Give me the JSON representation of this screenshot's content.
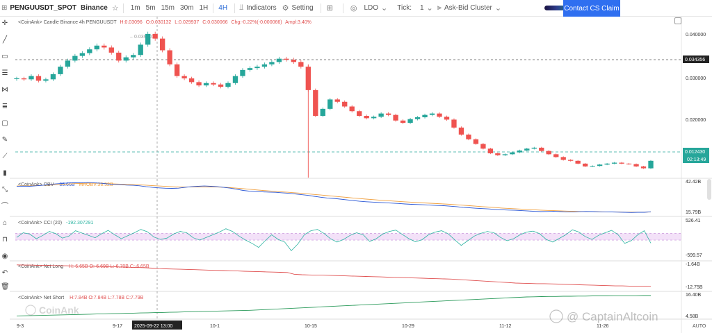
{
  "toolbar": {
    "symbol": "PENGUUSDT_SPOT",
    "exchange": "Binance",
    "timeframes": [
      "1m",
      "5m",
      "15m",
      "30m",
      "1H",
      "4H"
    ],
    "active_timeframe": "4H",
    "indicators_label": "Indicators",
    "setting_label": "Setting",
    "ldo_label": "LDO",
    "tick_label": "Tick:",
    "tick_value": "1",
    "ask_bid_label": "Ask-Bid Cluster",
    "contact_label": "Contact CS Claim"
  },
  "legend": {
    "candle": "<CoinAnk> Candle  Binance 4h PENGUUSDT",
    "candle_h": "H:0.03096",
    "candle_o": "O:0.030132",
    "candle_l": "L:0.029937",
    "candle_c": "C:0.030066",
    "candle_chg": "Chg:-0.22%(-0.000066)",
    "candle_ampl": "Ampl:3.40%",
    "high_marker": "0.039701",
    "obv_title": "<CoinAnk> OBV",
    "obv_value": "35.66B",
    "maobv_label": "MAOBV:38.52B",
    "cci_title": "<CoinAnk> CCI (20)",
    "cci_value": "-192.307291",
    "netlong_title": "<CoinAnk> Net Long",
    "netlong_values": "H:-6.65B  O:-6.69B  L:-6.70B  C:-6.65B",
    "netshort_title": "<CoinAnk> Net Short",
    "netshort_values": "H:7.84B  O:7.84B  L:7.78B  C:7.79B"
  },
  "price_axis": {
    "ticks": [
      "0.040000",
      "0.030000",
      "0.020000"
    ],
    "crosshair_tag": "0.034356",
    "current_price": "0.012430",
    "countdown": "02:13:49"
  },
  "obv_axis": {
    "top": "42.42B",
    "bottom": "15.79B"
  },
  "cci_axis": {
    "top": "526.41",
    "bottom": "-599.57"
  },
  "netlong_axis": {
    "top": "-1.64B",
    "bottom": "-12.75B"
  },
  "netshort_axis": {
    "top": "16.40B",
    "bottom": "4.58B"
  },
  "time_axis": {
    "labels": [
      "9-3",
      "9-17",
      "10-1",
      "10-15",
      "10-29",
      "11-12",
      "11-26"
    ],
    "crosshair_label": "2025-09-22 13:00",
    "auto_label": "AUTO"
  },
  "watermarks": {
    "coinank": "CoinAnk",
    "captain": "@ CaptainAltcoin"
  },
  "colors": {
    "up": "#26a69a",
    "down": "#ef5350",
    "obv": "#2a57d6",
    "maobv": "#f0a040",
    "cci": "#2ab3a0",
    "accent": "#2f6ff0"
  },
  "chart_data": {
    "type": "candlestick",
    "x_labels": [
      "9-3",
      "9-17",
      "10-1",
      "10-15",
      "10-29",
      "11-12",
      "11-26"
    ],
    "price_ylim": [
      0.01,
      0.042
    ],
    "price_key_levels": [
      0.0397,
      0.0344,
      0.0124
    ],
    "price_closes": [
      0.03,
      0.0298,
      0.0305,
      0.0295,
      0.0298,
      0.0309,
      0.0325,
      0.0338,
      0.0348,
      0.0354,
      0.0362,
      0.037,
      0.0366,
      0.0355,
      0.0338,
      0.0345,
      0.035,
      0.0372,
      0.0395,
      0.0385,
      0.036,
      0.033,
      0.0305,
      0.03,
      0.0292,
      0.0285,
      0.029,
      0.0287,
      0.0282,
      0.029,
      0.0305,
      0.0318,
      0.0322,
      0.0325,
      0.033,
      0.0335,
      0.0342,
      0.034,
      0.0335,
      0.0325,
      0.0275,
      0.022,
      0.0235,
      0.0255,
      0.025,
      0.024,
      0.023,
      0.022,
      0.0215,
      0.0218,
      0.0225,
      0.0222,
      0.021,
      0.0205,
      0.0213,
      0.0217,
      0.0222,
      0.0225,
      0.0218,
      0.0212,
      0.0195,
      0.018,
      0.017,
      0.016,
      0.015,
      0.014,
      0.0136,
      0.0138,
      0.0142,
      0.0146,
      0.015,
      0.0152,
      0.0145,
      0.0138,
      0.0132,
      0.0126,
      0.0124,
      0.0118,
      0.0112,
      0.0113,
      0.0116,
      0.0118,
      0.012,
      0.0118,
      0.0117,
      0.0112,
      0.0108,
      0.0124
    ],
    "obv_ylim": [
      15.79,
      42.42
    ],
    "obv": [
      38.5,
      38.7,
      38.6,
      39.0,
      39.4,
      40.0,
      40.6,
      41.0,
      41.4,
      41.6,
      41.5,
      41.7,
      41.5,
      41.2,
      40.6,
      40.2,
      40.0,
      39.6,
      39.4,
      39.0,
      38.2,
      37.6,
      37.2,
      36.9,
      36.8,
      37.0,
      37.6,
      38.2,
      38.6,
      38.8,
      38.6,
      38.2,
      37.6,
      37.0,
      36.0,
      35.0,
      34.4,
      34.0,
      33.8,
      33.6,
      33.4,
      33.0,
      32.6,
      32.0,
      31.4,
      30.8,
      30.0,
      29.2,
      28.6,
      28.2,
      27.6,
      27.0,
      26.4,
      25.8,
      25.4,
      25.1,
      24.8,
      24.5,
      24.2,
      23.9,
      23.5,
      23.2,
      23.0,
      22.8,
      22.5,
      22.2,
      22.0,
      21.6,
      21.2,
      20.6,
      20.2,
      19.8,
      19.5,
      19.2,
      18.8,
      18.5,
      18.3,
      18.1,
      17.8,
      17.5,
      17.2,
      17.0,
      17.1,
      17.3,
      17.0,
      16.6,
      16.6,
      16.9,
      17.1,
      17.0,
      16.8,
      16.6,
      16.7,
      16.5,
      16.4,
      16.2,
      16.4,
      16.4,
      16.8
    ],
    "maobv": [
      38.8,
      38.9,
      39.0,
      39.2,
      39.4,
      39.6,
      39.9,
      40.2,
      40.5,
      40.8,
      41.0,
      41.2,
      41.2,
      41.1,
      40.9,
      40.6,
      40.4,
      40.2,
      40.0,
      39.8,
      39.5,
      39.1,
      38.8,
      38.5,
      38.2,
      38.0,
      37.9,
      37.9,
      37.9,
      38.0,
      38.0,
      37.9,
      37.7,
      37.4,
      37.0,
      36.5,
      36.0,
      35.5,
      35.0,
      34.6,
      34.2,
      33.8,
      33.4,
      33.0,
      32.6,
      32.1,
      31.6,
      31.1,
      30.6,
      30.1,
      29.6,
      29.1,
      28.6,
      28.1,
      27.6,
      27.2,
      26.8,
      26.4,
      26.0,
      25.7,
      25.3,
      25.0,
      24.7,
      24.4,
      24.1,
      23.8,
      23.5,
      23.2,
      22.8,
      22.4,
      22.0,
      21.6,
      21.2,
      20.8,
      20.4,
      20.0,
      19.7,
      19.4,
      19.1,
      18.8,
      18.5,
      18.2,
      18.0,
      17.8,
      17.6,
      17.4,
      17.2,
      17.1,
      17.0,
      16.9,
      16.8,
      16.7,
      16.6,
      16.6,
      16.5,
      16.5,
      16.5,
      16.5,
      16.6
    ],
    "cci_ylim": [
      -599.57,
      526.41
    ],
    "cci": [
      -20,
      120,
      80,
      -60,
      40,
      160,
      90,
      -40,
      20,
      180,
      110,
      40,
      -30,
      90,
      190,
      60,
      -60,
      30,
      120,
      220,
      150,
      -10,
      -80,
      -40,
      80,
      160,
      120,
      -30,
      -100,
      -20,
      60,
      140,
      240,
      160,
      20,
      -100,
      -200,
      -320,
      -120,
      60,
      -80,
      -160,
      -420,
      -220,
      60,
      180,
      220,
      100,
      -60,
      -160,
      -80,
      40,
      120,
      60,
      -140,
      -60,
      80,
      160,
      200,
      70,
      -60,
      -150,
      -90,
      60,
      140,
      180,
      90,
      -90,
      -260,
      -120,
      20,
      100,
      160,
      120,
      -20,
      -120,
      -60,
      60,
      140,
      170,
      90,
      -80,
      -160,
      -50,
      60,
      210,
      140,
      0,
      -80,
      40,
      120,
      190,
      60,
      -200,
      -120,
      60,
      180,
      -192
    ],
    "cci_band": [
      -100,
      100
    ],
    "netlong_ylim": [
      -12.75,
      -1.64
    ],
    "netlong": [
      -1.9,
      -2.0,
      -2.0,
      -2.1,
      -2.1,
      -2.2,
      -2.3,
      -2.3,
      -2.4,
      -2.5,
      -2.5,
      -2.6,
      -2.6,
      -2.7,
      -2.8,
      -2.9,
      -3.0,
      -3.1,
      -3.2,
      -3.4,
      -3.6,
      -3.7,
      -3.8,
      -3.9,
      -4.0,
      -4.1,
      -4.2,
      -4.3,
      -4.4,
      -4.5,
      -4.6,
      -4.7,
      -4.8,
      -4.9,
      -5.0,
      -5.1,
      -5.2,
      -5.3,
      -5.4,
      -6.2,
      -6.4,
      -6.5,
      -6.6,
      -6.6,
      -6.7,
      -6.8,
      -6.9,
      -7.0,
      -7.1,
      -7.2,
      -7.3,
      -7.4,
      -7.5,
      -7.6,
      -7.7,
      -7.8,
      -7.9,
      -8.0,
      -8.1,
      -8.2,
      -8.3,
      -8.4,
      -8.6,
      -8.8,
      -9.0,
      -9.2,
      -9.4,
      -9.6,
      -9.8,
      -10.0,
      -10.2,
      -10.3,
      -10.4,
      -10.5,
      -10.5,
      -10.6,
      -10.7,
      -10.8,
      -10.9,
      -11.0,
      -11.1,
      -11.2,
      -11.3,
      -11.4,
      -11.5,
      -11.5,
      -11.6,
      -11.6,
      -11.6,
      -11.7
    ],
    "netshort_ylim": [
      4.58,
      16.4
    ],
    "netshort": [
      4.8,
      4.9,
      5.0,
      5.1,
      5.2,
      5.3,
      5.4,
      5.5,
      5.6,
      5.7,
      5.8,
      5.9,
      6.0,
      6.1,
      6.2,
      6.3,
      6.4,
      6.5,
      6.6,
      6.7,
      6.8,
      6.9,
      7.0,
      7.1,
      7.2,
      7.3,
      7.4,
      7.5,
      7.6,
      7.7,
      7.8,
      7.9,
      8.0,
      8.2,
      8.4,
      8.6,
      8.8,
      9.0,
      9.2,
      9.4,
      9.6,
      9.8,
      10.0,
      10.2,
      10.4,
      10.6,
      10.8,
      11.0,
      11.2,
      11.4,
      11.6,
      11.8,
      12.0,
      12.2,
      12.4,
      12.6,
      12.8,
      13.0,
      13.2,
      13.4,
      13.6,
      13.8,
      14.0,
      14.2,
      14.4,
      14.6,
      14.8,
      15.0,
      15.2,
      15.4,
      15.6,
      15.7,
      15.8,
      15.9,
      15.9,
      16.0,
      16.0,
      16.1,
      16.1,
      16.2,
      16.2,
      16.2,
      16.3,
      16.3,
      16.3,
      16.3,
      16.4,
      16.4
    ]
  }
}
